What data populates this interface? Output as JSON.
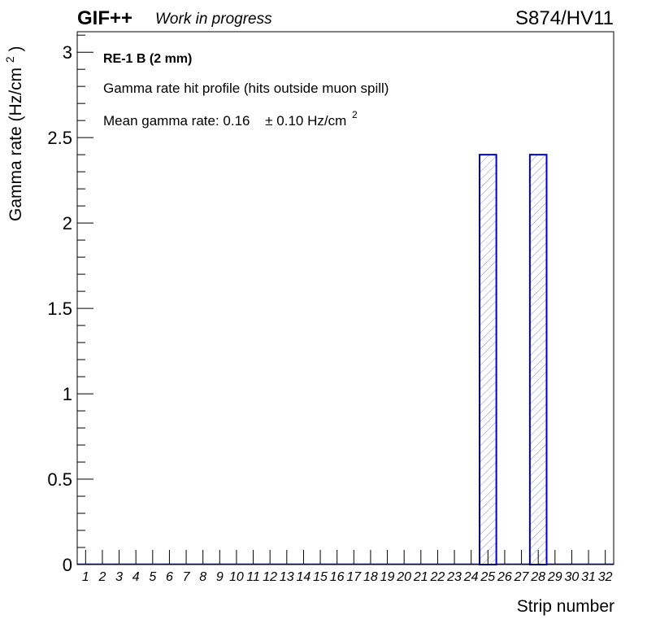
{
  "header": {
    "brand": "GIF++",
    "subtitle": "Work in progress",
    "run_label": "S874/HV11"
  },
  "legend": {
    "detector": "RE-1 B (2 mm)",
    "description": "Gamma rate hit profile (hits outside muon spill)",
    "mean_prefix": "Mean gamma rate: 0.16",
    "mean_error": "± 0.10 Hz/cm",
    "mean_exponent": "2"
  },
  "colors": {
    "bar_line": "#0000cc",
    "hatch": "#8c8ccc"
  },
  "chart_data": {
    "type": "bar",
    "xlabel": "Strip number",
    "ylabel_main": "Gamma rate (Hz/cm",
    "ylabel_exponent": "2",
    "ylabel_close": ")",
    "ylim": [
      0,
      3.12
    ],
    "yticks": [
      0,
      0.5,
      1,
      1.5,
      2,
      2.5,
      3
    ],
    "ytick_labels": [
      "0",
      "0.5",
      "1",
      "1.5",
      "2",
      "2.5",
      "3"
    ],
    "categories": [
      "1",
      "2",
      "3",
      "4",
      "5",
      "6",
      "7",
      "8",
      "9",
      "10",
      "11",
      "12",
      "13",
      "14",
      "15",
      "16",
      "17",
      "18",
      "19",
      "20",
      "21",
      "22",
      "23",
      "24",
      "25",
      "26",
      "27",
      "28",
      "29",
      "30",
      "31",
      "32"
    ],
    "values": [
      0,
      0,
      0,
      0,
      0,
      0,
      0,
      0,
      0,
      0,
      0,
      0,
      0,
      0,
      0,
      0,
      0,
      0,
      0,
      0,
      0,
      0,
      0,
      0,
      2.4,
      0,
      0,
      2.4,
      0,
      0,
      0,
      0
    ]
  }
}
